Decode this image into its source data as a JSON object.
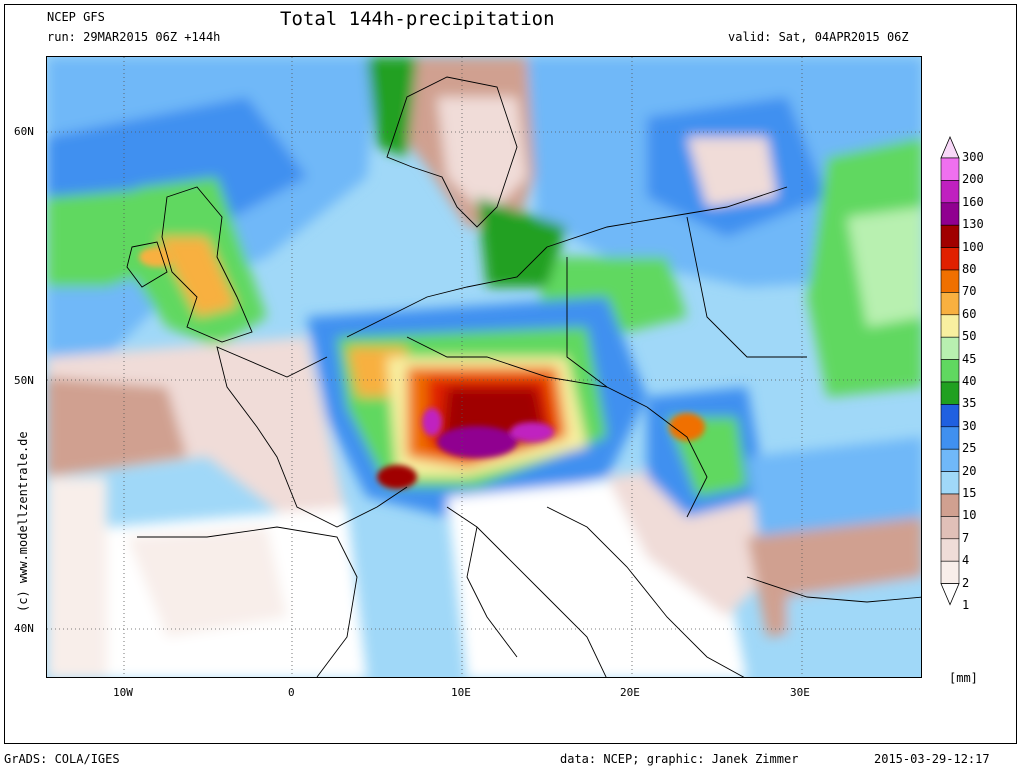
{
  "header": {
    "model": "NCEP GFS",
    "run": "run: 29MAR2015 06Z +144h",
    "title": "Total 144h-precipitation",
    "valid": "valid: Sat, 04APR2015 06Z"
  },
  "watermark": "(c)  www.modellzentrale.de",
  "lat_labels": [
    "60N",
    "50N",
    "40N"
  ],
  "lon_labels": [
    "10W",
    "0",
    "10E",
    "20E",
    "30E"
  ],
  "legend": {
    "units": "[mm]",
    "levels": [
      {
        "label": "300",
        "color": "#f8d8f8"
      },
      {
        "label": "200",
        "color": "#f070f0"
      },
      {
        "label": "160",
        "color": "#c020c0"
      },
      {
        "label": "130",
        "color": "#900090"
      },
      {
        "label": "100",
        "color": "#a00000"
      },
      {
        "label": "80",
        "color": "#e02000"
      },
      {
        "label": "70",
        "color": "#f07000"
      },
      {
        "label": "60",
        "color": "#f8b040"
      },
      {
        "label": "50",
        "color": "#f8f0a0"
      },
      {
        "label": "45",
        "color": "#b8f0b0"
      },
      {
        "label": "40",
        "color": "#60d860"
      },
      {
        "label": "35",
        "color": "#20a020"
      },
      {
        "label": "30",
        "color": "#2060e0"
      },
      {
        "label": "25",
        "color": "#4090f0"
      },
      {
        "label": "20",
        "color": "#70b8f8"
      },
      {
        "label": "15",
        "color": "#a0d8f8"
      },
      {
        "label": "10",
        "color": "#d0a090"
      },
      {
        "label": "7",
        "color": "#e0c0b8"
      },
      {
        "label": "4",
        "color": "#f0dcd8"
      },
      {
        "label": "2",
        "color": "#f8eeea"
      },
      {
        "label": "1",
        "color": "#ffffff"
      }
    ]
  },
  "footer": {
    "grads": "GrADS: COLA/IGES",
    "credit": "data: NCEP; graphic: Janek Zimmer",
    "timestamp": "2015-03-29-12:17"
  }
}
